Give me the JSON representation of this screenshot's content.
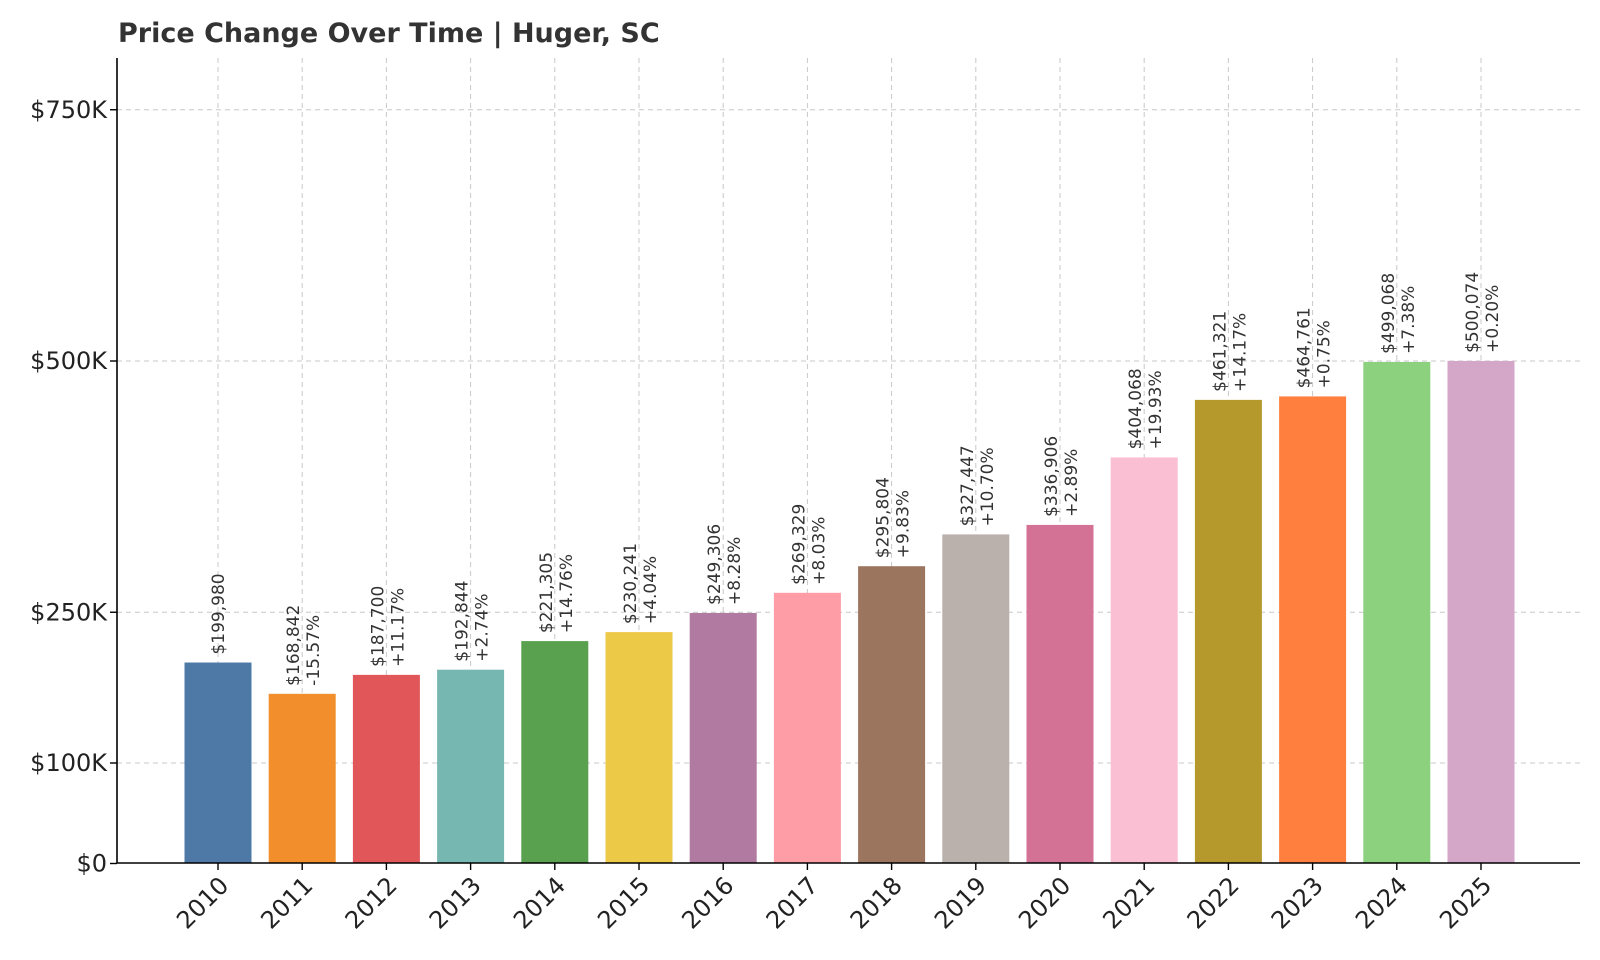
{
  "chart_data": {
    "type": "bar",
    "title": "Price Change Over Time | Huger, SC",
    "xlabel": "",
    "ylabel": "",
    "categories": [
      "2010",
      "2011",
      "2012",
      "2013",
      "2014",
      "2015",
      "2016",
      "2017",
      "2018",
      "2019",
      "2020",
      "2021",
      "2022",
      "2023",
      "2024",
      "2025"
    ],
    "values": [
      199980,
      168842,
      187700,
      192844,
      221305,
      230241,
      249306,
      269329,
      295804,
      327447,
      336906,
      404068,
      461321,
      464761,
      499068,
      500074
    ],
    "value_labels": [
      "$199,980",
      "$168,842",
      "$187,700",
      "$192,844",
      "$221,305",
      "$230,241",
      "$249,306",
      "$269,329",
      "$295,804",
      "$327,447",
      "$336,906",
      "$404,068",
      "$461,321",
      "$464,761",
      "$499,068",
      "$500,074"
    ],
    "change_labels": [
      "",
      "-15.57%",
      "+11.17%",
      "+2.74%",
      "+14.76%",
      "+4.04%",
      "+8.28%",
      "+8.03%",
      "+9.83%",
      "+10.70%",
      "+2.89%",
      "+19.93%",
      "+14.17%",
      "+0.75%",
      "+7.38%",
      "+0.20%"
    ],
    "colors": [
      "#4e79a7",
      "#f28e2b",
      "#e15759",
      "#76b7b2",
      "#59a14f",
      "#edc948",
      "#b07aa1",
      "#ff9da7",
      "#9c755f",
      "#bab0ac",
      "#d37295",
      "#fabfd2",
      "#b6992d",
      "#ff7f3e",
      "#8cd17d",
      "#d4a6c8"
    ],
    "y_ticks": [
      0,
      100000,
      250000,
      500000,
      750000
    ],
    "y_tick_labels": [
      "$0",
      "$100K",
      "$250K",
      "$500K",
      "$750K"
    ],
    "ylim": [
      0,
      800000
    ],
    "grid": true,
    "legend": "none"
  }
}
